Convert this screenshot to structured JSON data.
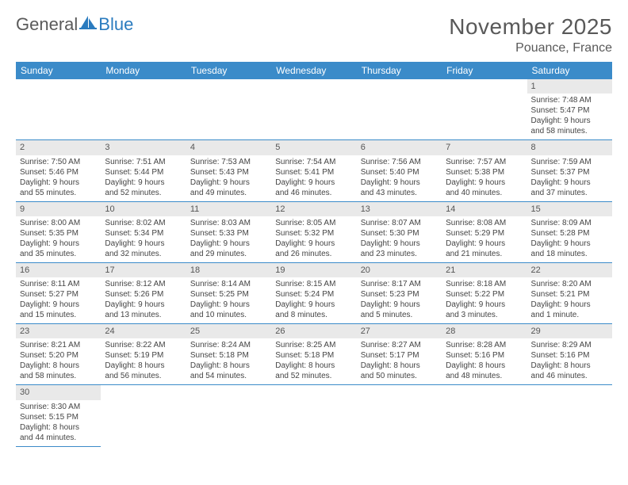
{
  "colors": {
    "header_bg": "#3b8bc9",
    "header_text": "#ffffff",
    "daynum_bg": "#e9e9e9",
    "daynum_text": "#555555",
    "cell_border": "#3b8bc9",
    "body_text": "#444444",
    "title_text": "#595959",
    "logo_gray": "#5a5a5a",
    "logo_blue": "#2a7bbf",
    "page_bg": "#ffffff"
  },
  "logo": {
    "part1": "General",
    "part2": "Blue"
  },
  "title": "November 2025",
  "location": "Pouance, France",
  "weekdays": [
    "Sunday",
    "Monday",
    "Tuesday",
    "Wednesday",
    "Thursday",
    "Friday",
    "Saturday"
  ],
  "grid": {
    "leading_blanks": 6,
    "days": [
      {
        "n": "1",
        "sunrise": "Sunrise: 7:48 AM",
        "sunset": "Sunset: 5:47 PM",
        "day1": "Daylight: 9 hours",
        "day2": "and 58 minutes."
      },
      {
        "n": "2",
        "sunrise": "Sunrise: 7:50 AM",
        "sunset": "Sunset: 5:46 PM",
        "day1": "Daylight: 9 hours",
        "day2": "and 55 minutes."
      },
      {
        "n": "3",
        "sunrise": "Sunrise: 7:51 AM",
        "sunset": "Sunset: 5:44 PM",
        "day1": "Daylight: 9 hours",
        "day2": "and 52 minutes."
      },
      {
        "n": "4",
        "sunrise": "Sunrise: 7:53 AM",
        "sunset": "Sunset: 5:43 PM",
        "day1": "Daylight: 9 hours",
        "day2": "and 49 minutes."
      },
      {
        "n": "5",
        "sunrise": "Sunrise: 7:54 AM",
        "sunset": "Sunset: 5:41 PM",
        "day1": "Daylight: 9 hours",
        "day2": "and 46 minutes."
      },
      {
        "n": "6",
        "sunrise": "Sunrise: 7:56 AM",
        "sunset": "Sunset: 5:40 PM",
        "day1": "Daylight: 9 hours",
        "day2": "and 43 minutes."
      },
      {
        "n": "7",
        "sunrise": "Sunrise: 7:57 AM",
        "sunset": "Sunset: 5:38 PM",
        "day1": "Daylight: 9 hours",
        "day2": "and 40 minutes."
      },
      {
        "n": "8",
        "sunrise": "Sunrise: 7:59 AM",
        "sunset": "Sunset: 5:37 PM",
        "day1": "Daylight: 9 hours",
        "day2": "and 37 minutes."
      },
      {
        "n": "9",
        "sunrise": "Sunrise: 8:00 AM",
        "sunset": "Sunset: 5:35 PM",
        "day1": "Daylight: 9 hours",
        "day2": "and 35 minutes."
      },
      {
        "n": "10",
        "sunrise": "Sunrise: 8:02 AM",
        "sunset": "Sunset: 5:34 PM",
        "day1": "Daylight: 9 hours",
        "day2": "and 32 minutes."
      },
      {
        "n": "11",
        "sunrise": "Sunrise: 8:03 AM",
        "sunset": "Sunset: 5:33 PM",
        "day1": "Daylight: 9 hours",
        "day2": "and 29 minutes."
      },
      {
        "n": "12",
        "sunrise": "Sunrise: 8:05 AM",
        "sunset": "Sunset: 5:32 PM",
        "day1": "Daylight: 9 hours",
        "day2": "and 26 minutes."
      },
      {
        "n": "13",
        "sunrise": "Sunrise: 8:07 AM",
        "sunset": "Sunset: 5:30 PM",
        "day1": "Daylight: 9 hours",
        "day2": "and 23 minutes."
      },
      {
        "n": "14",
        "sunrise": "Sunrise: 8:08 AM",
        "sunset": "Sunset: 5:29 PM",
        "day1": "Daylight: 9 hours",
        "day2": "and 21 minutes."
      },
      {
        "n": "15",
        "sunrise": "Sunrise: 8:09 AM",
        "sunset": "Sunset: 5:28 PM",
        "day1": "Daylight: 9 hours",
        "day2": "and 18 minutes."
      },
      {
        "n": "16",
        "sunrise": "Sunrise: 8:11 AM",
        "sunset": "Sunset: 5:27 PM",
        "day1": "Daylight: 9 hours",
        "day2": "and 15 minutes."
      },
      {
        "n": "17",
        "sunrise": "Sunrise: 8:12 AM",
        "sunset": "Sunset: 5:26 PM",
        "day1": "Daylight: 9 hours",
        "day2": "and 13 minutes."
      },
      {
        "n": "18",
        "sunrise": "Sunrise: 8:14 AM",
        "sunset": "Sunset: 5:25 PM",
        "day1": "Daylight: 9 hours",
        "day2": "and 10 minutes."
      },
      {
        "n": "19",
        "sunrise": "Sunrise: 8:15 AM",
        "sunset": "Sunset: 5:24 PM",
        "day1": "Daylight: 9 hours",
        "day2": "and 8 minutes."
      },
      {
        "n": "20",
        "sunrise": "Sunrise: 8:17 AM",
        "sunset": "Sunset: 5:23 PM",
        "day1": "Daylight: 9 hours",
        "day2": "and 5 minutes."
      },
      {
        "n": "21",
        "sunrise": "Sunrise: 8:18 AM",
        "sunset": "Sunset: 5:22 PM",
        "day1": "Daylight: 9 hours",
        "day2": "and 3 minutes."
      },
      {
        "n": "22",
        "sunrise": "Sunrise: 8:20 AM",
        "sunset": "Sunset: 5:21 PM",
        "day1": "Daylight: 9 hours",
        "day2": "and 1 minute."
      },
      {
        "n": "23",
        "sunrise": "Sunrise: 8:21 AM",
        "sunset": "Sunset: 5:20 PM",
        "day1": "Daylight: 8 hours",
        "day2": "and 58 minutes."
      },
      {
        "n": "24",
        "sunrise": "Sunrise: 8:22 AM",
        "sunset": "Sunset: 5:19 PM",
        "day1": "Daylight: 8 hours",
        "day2": "and 56 minutes."
      },
      {
        "n": "25",
        "sunrise": "Sunrise: 8:24 AM",
        "sunset": "Sunset: 5:18 PM",
        "day1": "Daylight: 8 hours",
        "day2": "and 54 minutes."
      },
      {
        "n": "26",
        "sunrise": "Sunrise: 8:25 AM",
        "sunset": "Sunset: 5:18 PM",
        "day1": "Daylight: 8 hours",
        "day2": "and 52 minutes."
      },
      {
        "n": "27",
        "sunrise": "Sunrise: 8:27 AM",
        "sunset": "Sunset: 5:17 PM",
        "day1": "Daylight: 8 hours",
        "day2": "and 50 minutes."
      },
      {
        "n": "28",
        "sunrise": "Sunrise: 8:28 AM",
        "sunset": "Sunset: 5:16 PM",
        "day1": "Daylight: 8 hours",
        "day2": "and 48 minutes."
      },
      {
        "n": "29",
        "sunrise": "Sunrise: 8:29 AM",
        "sunset": "Sunset: 5:16 PM",
        "day1": "Daylight: 8 hours",
        "day2": "and 46 minutes."
      },
      {
        "n": "30",
        "sunrise": "Sunrise: 8:30 AM",
        "sunset": "Sunset: 5:15 PM",
        "day1": "Daylight: 8 hours",
        "day2": "and 44 minutes."
      }
    ]
  }
}
